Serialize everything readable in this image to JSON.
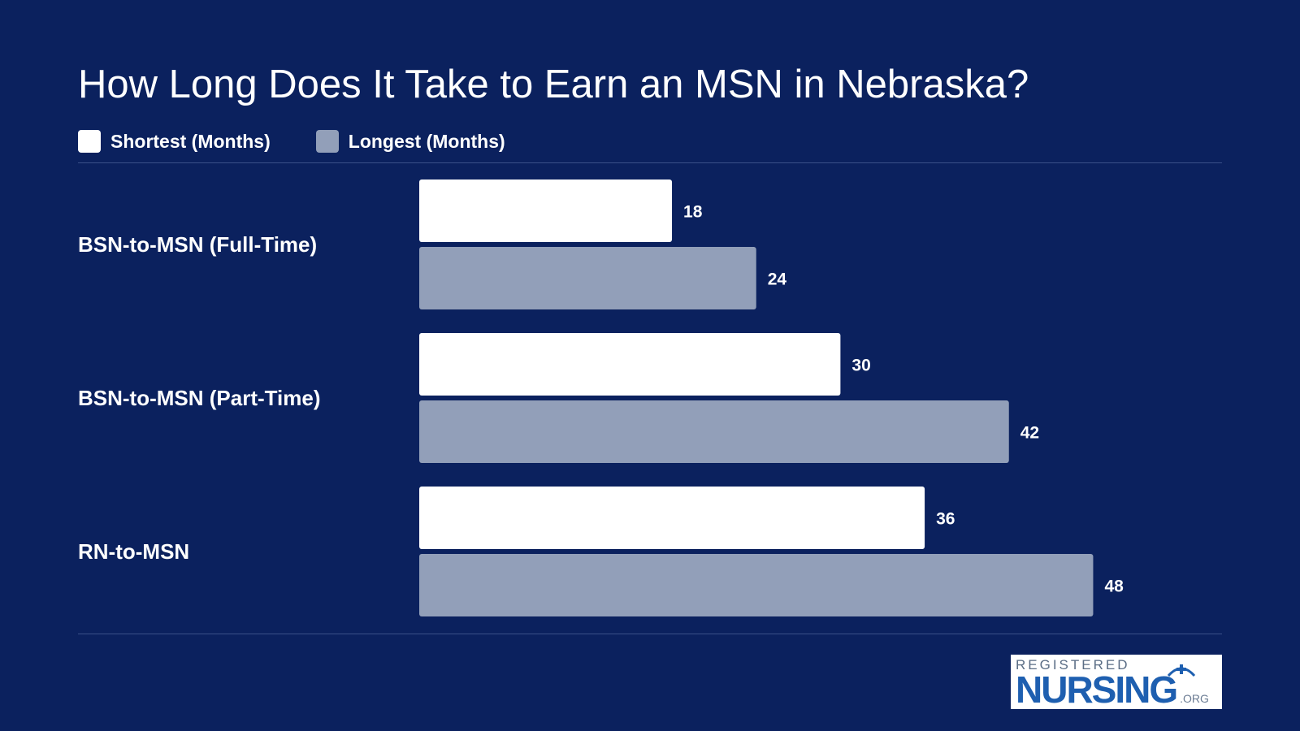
{
  "chart_data": {
    "type": "bar",
    "orientation": "horizontal",
    "title": "How Long Does It Take to Earn an MSN in Nebraska?",
    "categories": [
      "BSN-to-MSN (Full-Time)",
      "BSN-to-MSN (Part-Time)",
      "RN-to-MSN"
    ],
    "series": [
      {
        "name": "Shortest (Months)",
        "values": [
          18,
          30,
          36
        ],
        "color": "#ffffff"
      },
      {
        "name": "Longest (Months)",
        "values": [
          24,
          42,
          48
        ],
        "color": "#929fb9"
      }
    ],
    "legend_position": "top-left",
    "grid": false,
    "xlim": [
      0,
      48
    ]
  },
  "logo": {
    "top": "REGISTERED",
    "main": "NURSING",
    "suffix": ".ORG"
  },
  "colors": {
    "background": "#0b215e",
    "shortest": "#ffffff",
    "longest": "#929fb9",
    "logo_blue": "#1e5fb0"
  }
}
